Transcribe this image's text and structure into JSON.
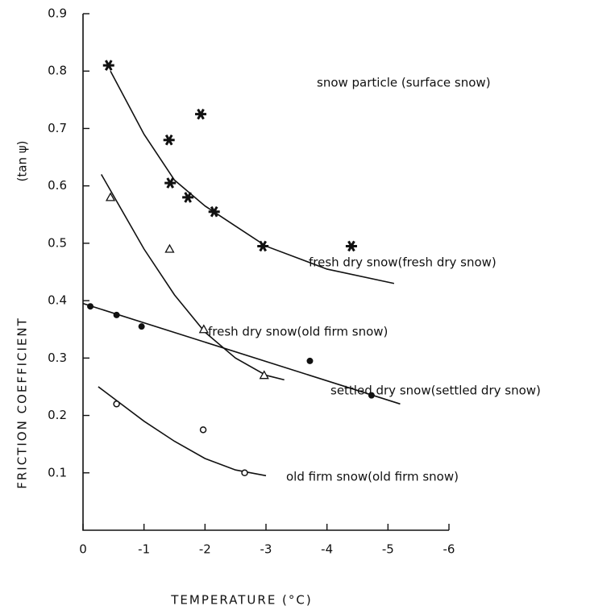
{
  "chart_data": {
    "type": "scatter",
    "xlabel": "TEMPERATURE  (°C)",
    "ylabel": "FRICTION  COEFFICIENT",
    "ylabel_unit": "(tan ψ)",
    "annotation": "snow particle (surface snow)",
    "xlim": [
      0,
      -6
    ],
    "ylim": [
      0,
      0.9
    ],
    "xticks": [
      0,
      -1,
      -2,
      -3,
      -4,
      -5,
      -6
    ],
    "yticks": [
      0.1,
      0.2,
      0.3,
      0.4,
      0.5,
      0.6,
      0.7,
      0.8,
      0.9
    ],
    "series": [
      {
        "name": "fresh dry snow(fresh dry snow)",
        "marker": "star",
        "color": "#111111",
        "x": [
          -0.42,
          -1.41,
          -1.93,
          -1.43,
          -1.72,
          -2.15,
          -2.95,
          -4.4
        ],
        "values": [
          0.81,
          0.68,
          0.725,
          0.605,
          0.58,
          0.555,
          0.495,
          0.495
        ],
        "fit_x": [
          -0.45,
          -1,
          -1.5,
          -2,
          -2.5,
          -3,
          -4,
          -5.1
        ],
        "fit_y": [
          0.8,
          0.69,
          0.61,
          0.565,
          0.53,
          0.495,
          0.455,
          0.43
        ]
      },
      {
        "name": "fresh dry snow(old firm snow)",
        "marker": "triangle",
        "color": "#111111",
        "x": [
          -0.45,
          -1.42,
          -1.98,
          -2.97
        ],
        "values": [
          0.58,
          0.49,
          0.35,
          0.27
        ],
        "fit_x": [
          -0.3,
          -1,
          -1.5,
          -2,
          -2.5,
          -3,
          -3.3
        ],
        "fit_y": [
          0.62,
          0.49,
          0.41,
          0.345,
          0.3,
          0.27,
          0.262
        ]
      },
      {
        "name": "settled dry snow(settled dry snow)",
        "marker": "dot",
        "color": "#111111",
        "x": [
          -0.12,
          -0.55,
          -0.96,
          -3.72,
          -4.73
        ],
        "values": [
          0.39,
          0.375,
          0.355,
          0.295,
          0.235
        ],
        "fit_x": [
          0,
          -5.2
        ],
        "fit_y": [
          0.395,
          0.22
        ]
      },
      {
        "name": "old firm snow(old firm snow)",
        "marker": "circle",
        "color": "#111111",
        "x": [
          -0.55,
          -1.97,
          -2.65
        ],
        "values": [
          0.22,
          0.175,
          0.1
        ],
        "fit_x": [
          -0.25,
          -1,
          -1.5,
          -2,
          -2.5,
          -3
        ],
        "fit_y": [
          0.25,
          0.19,
          0.155,
          0.125,
          0.105,
          0.095
        ]
      }
    ]
  }
}
